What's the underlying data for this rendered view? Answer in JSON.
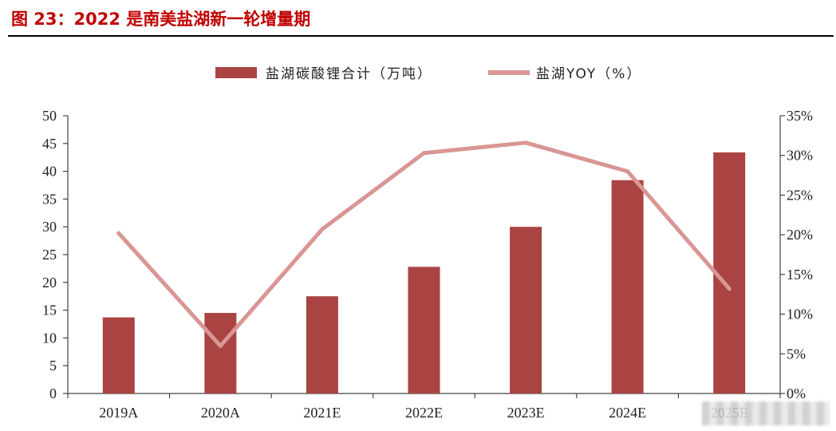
{
  "figure_title": "图 23：2022 是南美盐湖新一轮增量期",
  "chart_data": {
    "type": "bar",
    "title": "图 23：2022 是南美盐湖新一轮增量期",
    "categories": [
      "2019A",
      "2020A",
      "2021E",
      "2022E",
      "2023E",
      "2024E",
      "2025E"
    ],
    "series": [
      {
        "name": "盐湖碳酸锂合计（万吨）",
        "type": "bar",
        "axis": "left",
        "color": "#a94442",
        "values": [
          13.7,
          14.5,
          17.5,
          22.8,
          30.0,
          38.4,
          43.4
        ]
      },
      {
        "name": "盐湖YOY（%）",
        "type": "line",
        "axis": "right",
        "color": "#d99694",
        "values": [
          20.2,
          6.0,
          20.7,
          30.3,
          31.6,
          28.0,
          13.2
        ]
      }
    ],
    "left_axis": {
      "ylim": [
        0,
        50
      ],
      "ticks": [
        "0",
        "5",
        "10",
        "15",
        "20",
        "25",
        "30",
        "35",
        "40",
        "45",
        "50"
      ]
    },
    "right_axis": {
      "ylim": [
        0,
        35
      ],
      "ticks": [
        "0%",
        "5%",
        "10%",
        "15%",
        "20%",
        "25%",
        "30%",
        "35%"
      ]
    },
    "legend_position": "top-center",
    "grid": false
  }
}
